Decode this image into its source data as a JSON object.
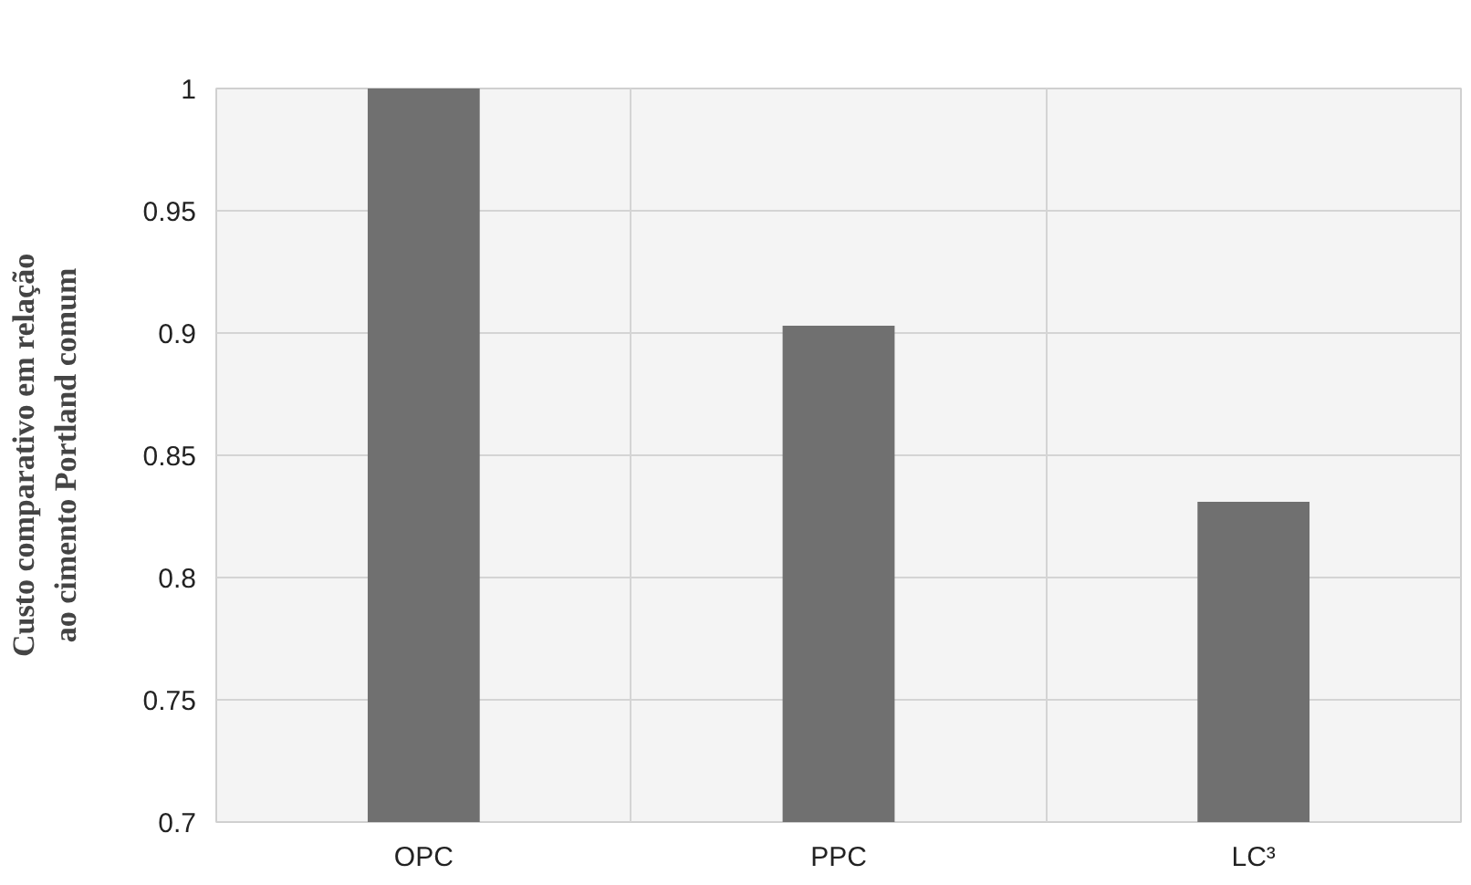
{
  "chart_data": {
    "type": "bar",
    "ylabel": "Custo comparativo em relação ao cimento Portland comum",
    "categories": [
      "OPC",
      "PPC",
      "LC³"
    ],
    "values": [
      1.0,
      0.903,
      0.831
    ],
    "color": "#707070",
    "ylim": [
      0.7,
      1
    ],
    "yticks": [
      0.7,
      0.75,
      0.8,
      0.85,
      0.9,
      0.95,
      1
    ],
    "grid": true
  }
}
